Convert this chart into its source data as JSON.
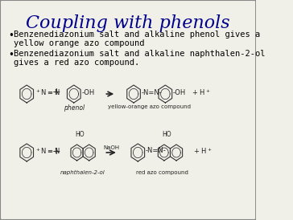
{
  "title": "Coupling with phenols",
  "title_color": "#00008B",
  "title_fontsize": 16,
  "bullet1_line1": "Benzenediazonium salt and alkaline phenol gives a",
  "bullet1_line2": "yellow orange azo compound",
  "bullet2_line1": "Benzenediazonium salt and alkaline naphthalen-2-ol",
  "bullet2_line2": "gives a red azo compound.",
  "background_color": "#f0f0e8",
  "text_color": "#000000",
  "text_fontsize": 7.5,
  "border_color": "#888888"
}
